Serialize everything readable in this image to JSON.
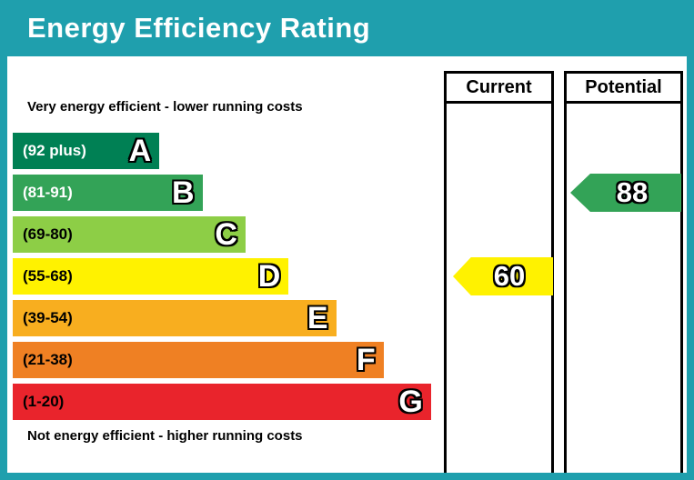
{
  "title": "Energy Efficiency Rating",
  "header": {
    "current_label": "Current",
    "potential_label": "Potential"
  },
  "notes": {
    "top": "Very energy efficient - lower running costs",
    "bottom": "Not energy efficient - higher running costs"
  },
  "colors": {
    "frame_teal": "#1f9fad",
    "border_black": "#000000",
    "background_white": "#ffffff"
  },
  "chart_data": {
    "type": "bar",
    "title": "Energy Efficiency Rating",
    "categories": [
      "A",
      "B",
      "C",
      "D",
      "E",
      "F",
      "G"
    ],
    "bands": [
      {
        "letter": "A",
        "range": "(92 plus)",
        "min": 92,
        "max": 100,
        "color": "#008054",
        "text_color": "#ffffff",
        "width_pct": 34
      },
      {
        "letter": "B",
        "range": "(81-91)",
        "min": 81,
        "max": 91,
        "color": "#33a357",
        "text_color": "#ffffff",
        "width_pct": 44
      },
      {
        "letter": "C",
        "range": "(69-80)",
        "min": 69,
        "max": 80,
        "color": "#8dce46",
        "text_color": "#000000",
        "width_pct": 54
      },
      {
        "letter": "D",
        "range": "(55-68)",
        "min": 55,
        "max": 68,
        "color": "#fff200",
        "text_color": "#000000",
        "width_pct": 64
      },
      {
        "letter": "E",
        "range": "(39-54)",
        "min": 39,
        "max": 54,
        "color": "#f8ae1f",
        "text_color": "#000000",
        "width_pct": 75
      },
      {
        "letter": "F",
        "range": "(21-38)",
        "min": 21,
        "max": 38,
        "color": "#ef8023",
        "text_color": "#000000",
        "width_pct": 86
      },
      {
        "letter": "G",
        "range": "(1-20)",
        "min": 1,
        "max": 20,
        "color": "#e9242c",
        "text_color": "#000000",
        "width_pct": 97
      }
    ],
    "current": {
      "value": 60,
      "band": "D",
      "band_index": 3,
      "color": "#fff200"
    },
    "potential": {
      "value": 88,
      "band": "B",
      "band_index": 1,
      "color": "#33a357"
    }
  }
}
